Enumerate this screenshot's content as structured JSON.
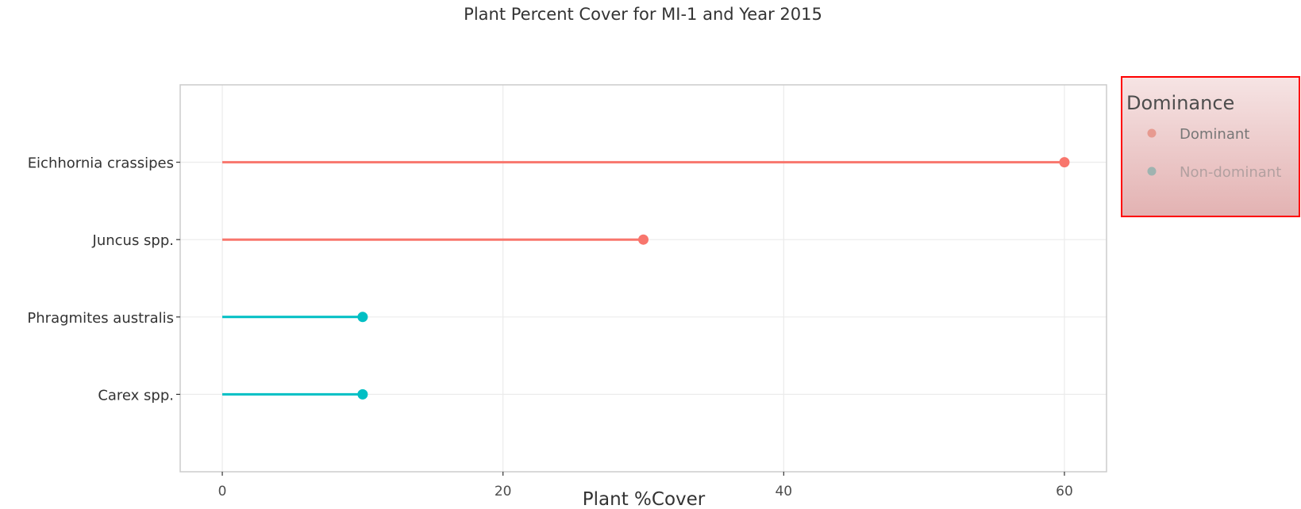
{
  "chart_data": {
    "type": "lollipop",
    "title": "Plant Percent Cover for MI-1 and Year 2015",
    "xlabel": "Plant %Cover",
    "ylabel": "",
    "xlim": [
      -3,
      63
    ],
    "x_ticks": [
      0,
      20,
      40,
      60
    ],
    "x_tick_labels": [
      "0",
      "20",
      "40",
      "60"
    ],
    "categories": [
      "Eichhornia crassipes",
      "Juncus spp.",
      "Phragmites australis",
      "Carex spp."
    ],
    "values": [
      60,
      30,
      10,
      10
    ],
    "groups": [
      "Dominant",
      "Dominant",
      "Non-dominant",
      "Non-dominant"
    ],
    "grid": true,
    "legend": {
      "title": "Dominance",
      "position": "right",
      "entries": [
        {
          "label": "Dominant",
          "color": "#f8766d"
        },
        {
          "label": "Non-dominant",
          "color": "#00bfc4"
        }
      ]
    }
  },
  "colors": {
    "dominant": "#f8766d",
    "non_dominant": "#00bfc4",
    "legend_border": "#ff0000",
    "legend_background_top": "#f6e4e4",
    "legend_background_bottom": "#e3b2b2",
    "legend_key_dominant": "#e79a90",
    "legend_key_nondominant": "#9fb3b0",
    "grid": "#ebebeb",
    "panel_border": "#cccccc"
  }
}
